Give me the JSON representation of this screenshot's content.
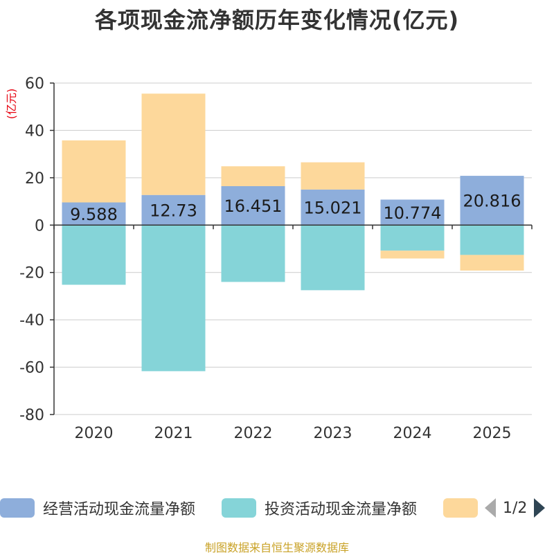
{
  "title": "各项现金流净额历年变化情况(亿元)",
  "source": "制图数据来自恒生聚源数据库",
  "pager": {
    "text": "1/2"
  },
  "colors": {
    "operating": "#8eaedb",
    "investing": "#85d4d8",
    "financing": "#fdd89b",
    "axis": "#333333",
    "grid": "#cccccc",
    "unit": "#e6000e"
  },
  "chart_data": {
    "type": "bar",
    "stacked": true,
    "title": "各项现金流净额历年变化情况(亿元)",
    "ylabel": "(亿元)",
    "xlabel": "",
    "categories": [
      "2020",
      "2021",
      "2022",
      "2023",
      "2024",
      "2025"
    ],
    "ylim": [
      -80,
      60
    ],
    "yticks": [
      60,
      40,
      20,
      0,
      -20,
      -40,
      -60,
      -80
    ],
    "series": [
      {
        "name": "经营活动现金流量净额",
        "key": "operating",
        "values": [
          9.588,
          12.73,
          16.451,
          15.021,
          10.774,
          20.816
        ]
      },
      {
        "name": "投资活动现金流量净额",
        "key": "investing",
        "values": [
          -25.2,
          -61.7,
          -24.0,
          -27.5,
          -10.8,
          -12.6
        ]
      },
      {
        "name": "",
        "key": "financing",
        "values": [
          26.2,
          42.8,
          8.4,
          11.5,
          -3.3,
          -6.6
        ]
      }
    ],
    "data_labels": [
      "9.588",
      "12.73",
      "16.451",
      "15.021",
      "10.774",
      "20.816"
    ],
    "legend_position": "bottom"
  }
}
